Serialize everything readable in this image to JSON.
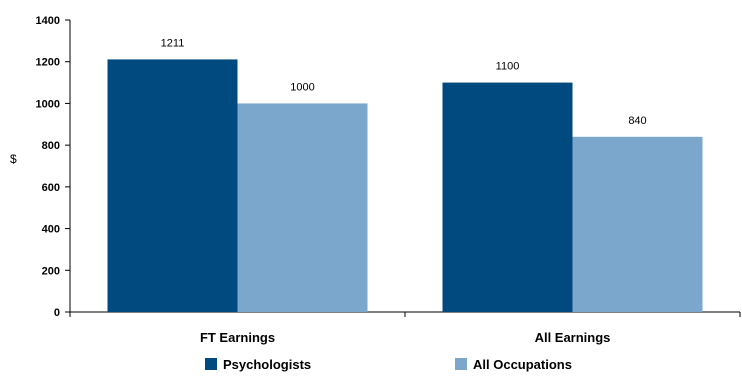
{
  "chart_data": {
    "type": "bar",
    "ylabel": "$",
    "xlabel": "",
    "ylim": [
      0,
      1400
    ],
    "yticks": [
      0,
      200,
      400,
      600,
      800,
      1000,
      1200,
      1400
    ],
    "categories": [
      "FT Earnings",
      "All Earnings"
    ],
    "series": [
      {
        "name": "Psychologists",
        "values": [
          1211,
          1100
        ],
        "color": "#004a7f"
      },
      {
        "name": "All Occupations",
        "values": [
          1000,
          840
        ],
        "color": "#7ba7cc"
      }
    ],
    "data_labels": true,
    "grid": false,
    "legend_position": "bottom"
  }
}
